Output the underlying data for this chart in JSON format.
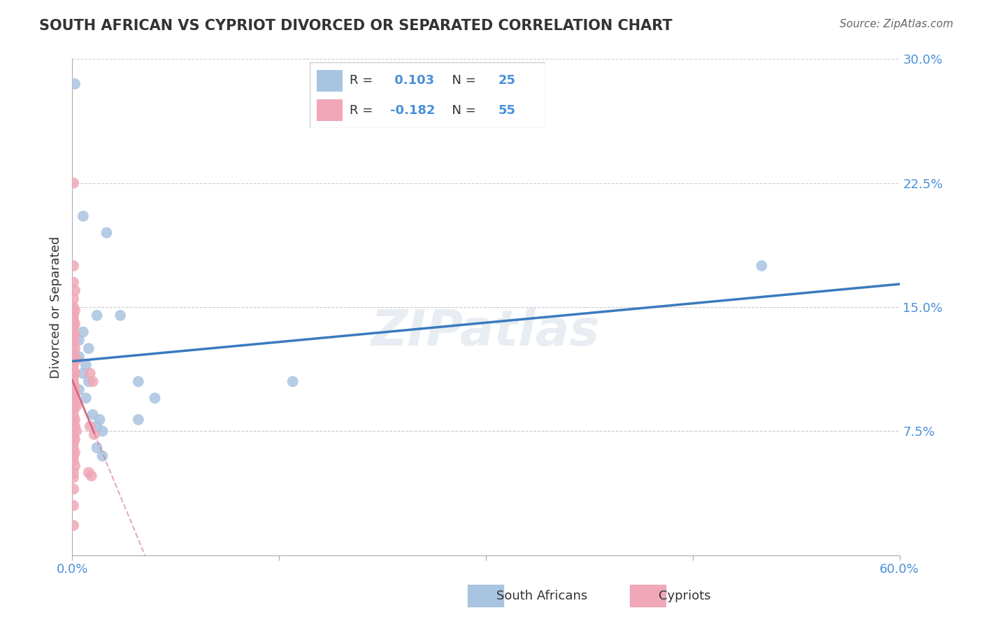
{
  "title": "SOUTH AFRICAN VS CYPRIOT DIVORCED OR SEPARATED CORRELATION CHART",
  "source": "Source: ZipAtlas.com",
  "ylabel_label": "Divorced or Separated",
  "xlim": [
    0.0,
    0.6
  ],
  "ylim": [
    0.0,
    0.3
  ],
  "ytick_vals": [
    0.075,
    0.15,
    0.225,
    0.3
  ],
  "ytick_labels": [
    "7.5%",
    "15.0%",
    "22.5%",
    "30.0%"
  ],
  "grid_color": "#cccccc",
  "blue_color": "#a8c4e0",
  "pink_color": "#f0a8b8",
  "blue_line_color": "#3a7abf",
  "pink_line_color": "#d46a80",
  "R_blue": 0.103,
  "N_blue": 25,
  "R_pink": -0.182,
  "N_pink": 55,
  "legend_label_blue": "South Africans",
  "legend_label_pink": "Cypriots",
  "watermark": "ZIPatlas",
  "blue_points": [
    [
      0.002,
      0.285
    ],
    [
      0.008,
      0.205
    ],
    [
      0.025,
      0.195
    ],
    [
      0.035,
      0.145
    ],
    [
      0.018,
      0.145
    ],
    [
      0.008,
      0.135
    ],
    [
      0.005,
      0.13
    ],
    [
      0.012,
      0.125
    ],
    [
      0.005,
      0.12
    ],
    [
      0.01,
      0.115
    ],
    [
      0.008,
      0.11
    ],
    [
      0.012,
      0.105
    ],
    [
      0.048,
      0.105
    ],
    [
      0.005,
      0.1
    ],
    [
      0.01,
      0.095
    ],
    [
      0.06,
      0.095
    ],
    [
      0.015,
      0.085
    ],
    [
      0.02,
      0.082
    ],
    [
      0.048,
      0.082
    ],
    [
      0.018,
      0.078
    ],
    [
      0.022,
      0.075
    ],
    [
      0.018,
      0.065
    ],
    [
      0.022,
      0.06
    ],
    [
      0.5,
      0.175
    ],
    [
      0.16,
      0.105
    ]
  ],
  "pink_points": [
    [
      0.001,
      0.225
    ],
    [
      0.001,
      0.175
    ],
    [
      0.001,
      0.165
    ],
    [
      0.002,
      0.16
    ],
    [
      0.001,
      0.155
    ],
    [
      0.001,
      0.15
    ],
    [
      0.002,
      0.148
    ],
    [
      0.001,
      0.145
    ],
    [
      0.001,
      0.142
    ],
    [
      0.002,
      0.14
    ],
    [
      0.001,
      0.138
    ],
    [
      0.001,
      0.135
    ],
    [
      0.002,
      0.133
    ],
    [
      0.001,
      0.13
    ],
    [
      0.001,
      0.128
    ],
    [
      0.002,
      0.125
    ],
    [
      0.001,
      0.122
    ],
    [
      0.002,
      0.12
    ],
    [
      0.003,
      0.118
    ],
    [
      0.001,
      0.115
    ],
    [
      0.001,
      0.112
    ],
    [
      0.002,
      0.11
    ],
    [
      0.001,
      0.108
    ],
    [
      0.001,
      0.105
    ],
    [
      0.002,
      0.102
    ],
    [
      0.001,
      0.1
    ],
    [
      0.002,
      0.098
    ],
    [
      0.001,
      0.095
    ],
    [
      0.002,
      0.092
    ],
    [
      0.003,
      0.09
    ],
    [
      0.001,
      0.088
    ],
    [
      0.001,
      0.085
    ],
    [
      0.002,
      0.082
    ],
    [
      0.001,
      0.08
    ],
    [
      0.002,
      0.078
    ],
    [
      0.003,
      0.075
    ],
    [
      0.001,
      0.072
    ],
    [
      0.002,
      0.07
    ],
    [
      0.001,
      0.068
    ],
    [
      0.001,
      0.065
    ],
    [
      0.002,
      0.062
    ],
    [
      0.001,
      0.06
    ],
    [
      0.001,
      0.057
    ],
    [
      0.002,
      0.054
    ],
    [
      0.001,
      0.05
    ],
    [
      0.001,
      0.047
    ],
    [
      0.013,
      0.11
    ],
    [
      0.015,
      0.105
    ],
    [
      0.013,
      0.078
    ],
    [
      0.016,
      0.073
    ],
    [
      0.012,
      0.05
    ],
    [
      0.014,
      0.048
    ],
    [
      0.001,
      0.04
    ],
    [
      0.001,
      0.03
    ],
    [
      0.001,
      0.018
    ]
  ]
}
